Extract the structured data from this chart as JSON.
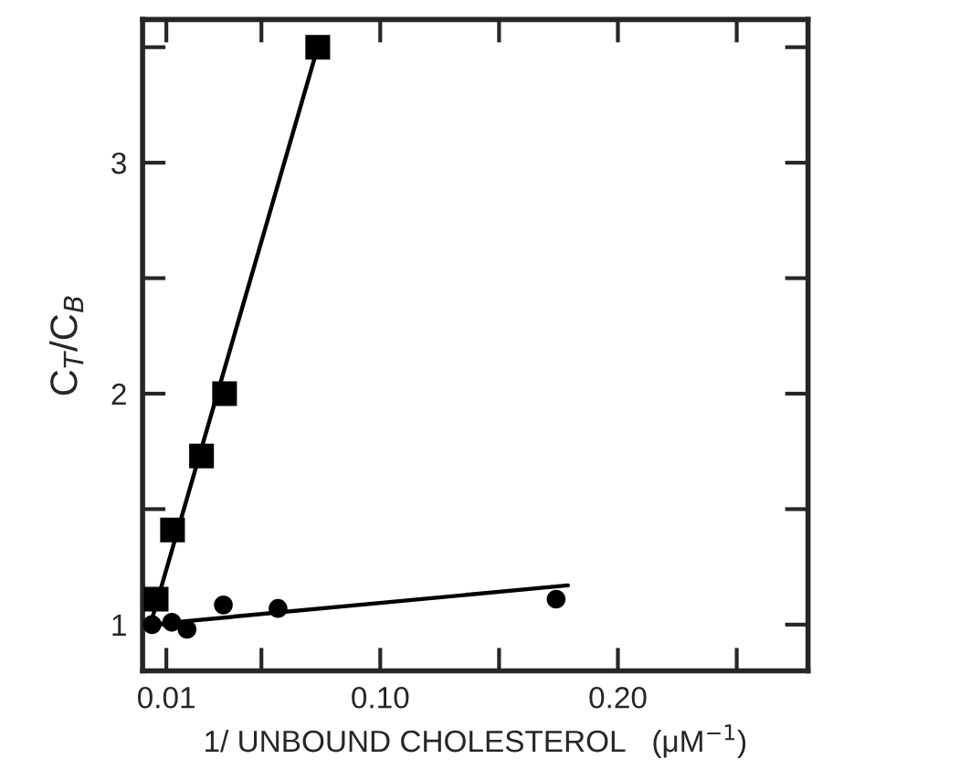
{
  "chart_data": {
    "type": "scatter",
    "xlabel": "1/ UNBOUND CHOLESTEROL   (μM$^{−1}$)",
    "ylabel": "C$_{T}$/C$_{B}$",
    "xlim": [
      0,
      0.28
    ],
    "ylim": [
      0.8,
      3.62
    ],
    "xticks": [
      {
        "value": 0.01,
        "label": "0.01"
      },
      {
        "value": 0.05,
        "label": null
      },
      {
        "value": 0.1,
        "label": "0.10"
      },
      {
        "value": 0.15,
        "label": null
      },
      {
        "value": 0.2,
        "label": "0.20"
      },
      {
        "value": 0.25,
        "label": null
      }
    ],
    "yticks": [
      1,
      {
        "value": 1.5,
        "label": null
      },
      2,
      {
        "value": 2.5,
        "label": null
      },
      3,
      {
        "value": 3.5,
        "label": null
      }
    ],
    "grid": false,
    "series": [
      {
        "marker": "square",
        "color": "#000000",
        "x": [
          0.0057,
          0.0126,
          0.0248,
          0.0345,
          0.0737
        ],
        "values": [
          1.11,
          1.41,
          1.73,
          2.0,
          3.5
        ]
      },
      {
        "marker": "circle",
        "color": "#000000",
        "x": [
          0.004,
          0.0123,
          0.0187,
          0.034,
          0.057,
          0.174
        ],
        "values": [
          1.0,
          1.01,
          0.98,
          1.085,
          1.07,
          1.11
        ]
      },
      {
        "type": "line",
        "marker": "none",
        "line_style": "solid",
        "color": "#000000",
        "x": [
          0.003,
          0.0737
        ],
        "values": [
          0.99,
          3.5
        ]
      },
      {
        "type": "line",
        "marker": "none",
        "line_style": "solid",
        "color": "#000000",
        "x": [
          0.0027,
          0.179
        ],
        "values": [
          1.0,
          1.17
        ]
      }
    ]
  }
}
